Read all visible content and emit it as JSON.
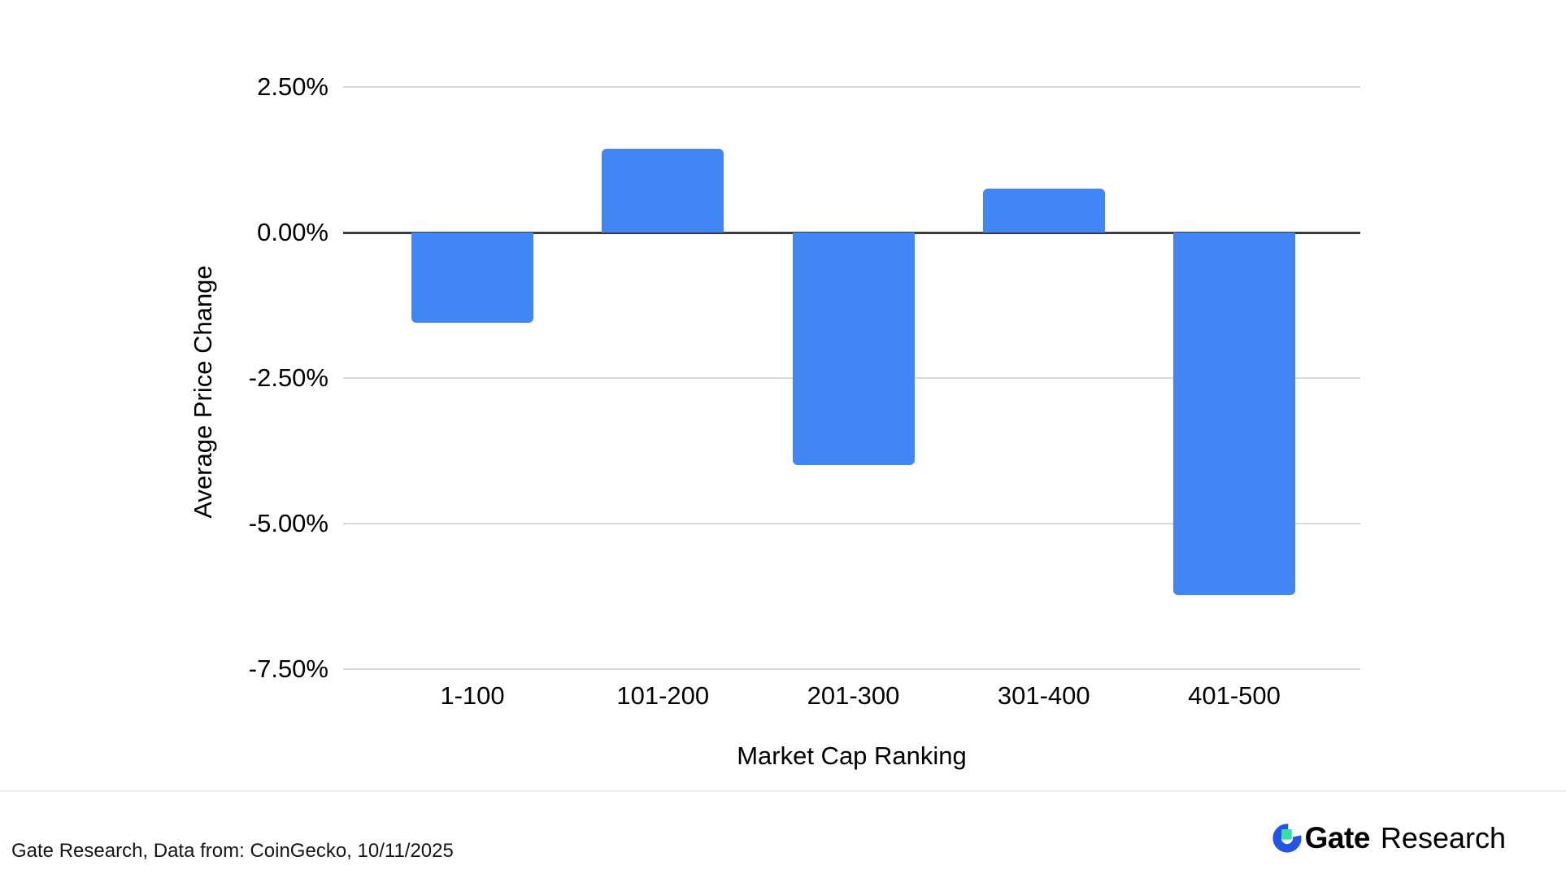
{
  "chart_data": {
    "type": "bar",
    "categories": [
      "1-100",
      "101-200",
      "201-300",
      "301-400",
      "401-500"
    ],
    "values": [
      -1.55,
      1.44,
      -4.0,
      0.75,
      -6.23
    ],
    "series_name": "Average Price Change",
    "title": "",
    "xlabel": "Market Cap Ranking",
    "ylabel": "Average Price Change",
    "ylim": [
      -7.5,
      2.5
    ],
    "yticks": [
      2.5,
      0,
      -2.5,
      -5,
      -7.5
    ],
    "ytick_labels": [
      "2.50%",
      "0.00%",
      "-2.50%",
      "-5.00%",
      "-7.50%"
    ],
    "grid": true,
    "legend": "none",
    "bar_color": "#4285F4",
    "gridline_color": "#d9d9d9",
    "zero_line_color": "#3b3b3b"
  },
  "footer": {
    "source_text": "Gate Research, Data from: CoinGecko, 10/11/2025",
    "logo": {
      "brand": "Gate",
      "suffix": "Research",
      "blue": "#2354E6",
      "green": "#38DFA2",
      "text_color": "#12152c"
    }
  }
}
